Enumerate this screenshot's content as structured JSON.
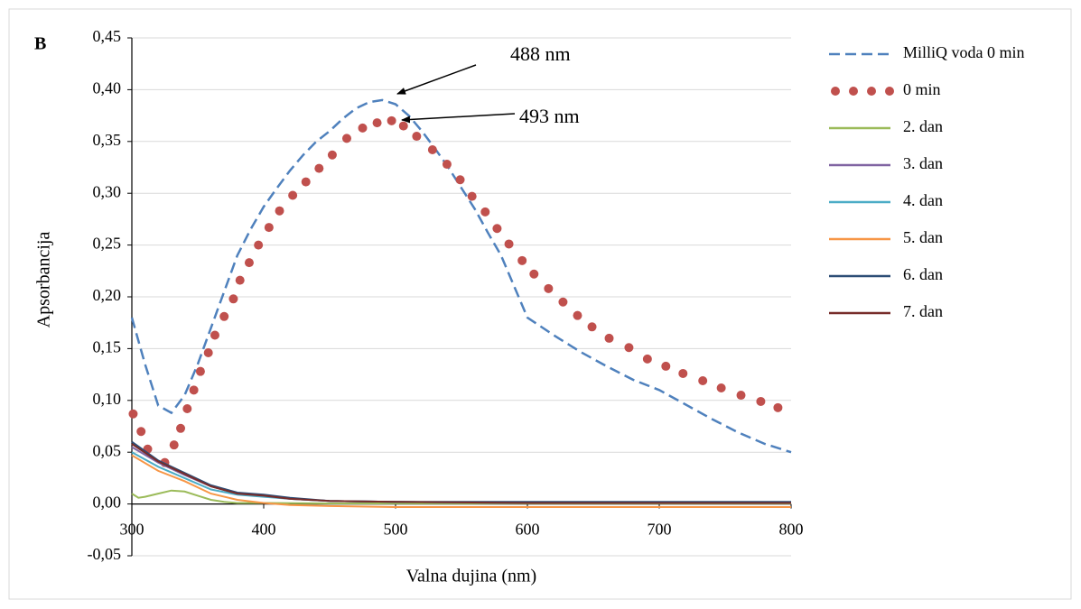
{
  "chart_data": {
    "type": "line",
    "title": "B",
    "xlabel": "Valna dujina (nm)",
    "ylabel": "Apsorbancija",
    "xlim": [
      300,
      800
    ],
    "xticks": [
      300,
      400,
      500,
      600,
      700,
      800
    ],
    "ylim": [
      -0.05,
      0.45
    ],
    "yticks": [
      {
        "value": -0.05,
        "label": "-0,05"
      },
      {
        "value": 0,
        "label": "0,00"
      },
      {
        "value": 0.05,
        "label": "0,05"
      },
      {
        "value": 0.1,
        "label": "0,10"
      },
      {
        "value": 0.15,
        "label": "0,15"
      },
      {
        "value": 0.2,
        "label": "0,20"
      },
      {
        "value": 0.25,
        "label": "0,25"
      },
      {
        "value": 0.3,
        "label": "0,30"
      },
      {
        "value": 0.35,
        "label": "0,35"
      },
      {
        "value": 0.4,
        "label": "0,40"
      },
      {
        "value": 0.45,
        "label": "0,45"
      }
    ],
    "grid": true,
    "legend": "right",
    "annotations": [
      {
        "text": "488 nm"
      },
      {
        "text": "493 nm"
      }
    ],
    "series": [
      {
        "name": "MilliQ voda 0 min",
        "color": "#4f81bd",
        "style": "dashed",
        "x": [
          300,
          310,
          320,
          330,
          340,
          350,
          360,
          370,
          380,
          390,
          400,
          410,
          420,
          430,
          440,
          450,
          460,
          470,
          480,
          490,
          500,
          510,
          520,
          530,
          540,
          550,
          560,
          570,
          580,
          590,
          600,
          620,
          640,
          660,
          680,
          700,
          720,
          740,
          760,
          780,
          800
        ],
        "values": [
          0.18,
          0.135,
          0.095,
          0.088,
          0.105,
          0.135,
          0.17,
          0.205,
          0.24,
          0.265,
          0.287,
          0.305,
          0.322,
          0.337,
          0.35,
          0.36,
          0.372,
          0.382,
          0.388,
          0.39,
          0.386,
          0.375,
          0.36,
          0.343,
          0.325,
          0.305,
          0.285,
          0.262,
          0.24,
          0.21,
          0.18,
          0.163,
          0.147,
          0.133,
          0.12,
          0.11,
          0.096,
          0.082,
          0.069,
          0.058,
          0.05
        ]
      },
      {
        "name": "0 min",
        "color": "#c0504d",
        "style": "dotted",
        "x": [
          301,
          307,
          312,
          325,
          332,
          337,
          342,
          347,
          352,
          358,
          363,
          370,
          377,
          382,
          389,
          396,
          404,
          412,
          422,
          432,
          442,
          452,
          463,
          475,
          486,
          497,
          506,
          516,
          528,
          539,
          549,
          558,
          568,
          577,
          586,
          596,
          605,
          616,
          627,
          638,
          649,
          662,
          677,
          691,
          705,
          718,
          733,
          747,
          762,
          777,
          790
        ],
        "values": [
          0.087,
          0.07,
          0.053,
          0.04,
          0.057,
          0.073,
          0.092,
          0.11,
          0.128,
          0.146,
          0.163,
          0.181,
          0.198,
          0.216,
          0.233,
          0.25,
          0.267,
          0.283,
          0.298,
          0.311,
          0.324,
          0.337,
          0.353,
          0.363,
          0.368,
          0.37,
          0.365,
          0.355,
          0.342,
          0.328,
          0.313,
          0.297,
          0.282,
          0.266,
          0.251,
          0.235,
          0.222,
          0.208,
          0.195,
          0.182,
          0.171,
          0.16,
          0.151,
          0.14,
          0.133,
          0.126,
          0.119,
          0.112,
          0.105,
          0.099,
          0.093
        ]
      },
      {
        "name": "2. dan",
        "color": "#9bbb59",
        "style": "solid",
        "x": [
          300,
          305,
          310,
          320,
          330,
          340,
          350,
          360,
          370,
          380,
          400,
          450,
          500,
          600,
          700,
          800
        ],
        "values": [
          0.01,
          0.006,
          0.007,
          0.01,
          0.013,
          0.012,
          0.008,
          0.004,
          0.002,
          0.001,
          0.001,
          0.0005,
          0.0005,
          0.0005,
          0.0005,
          0.0005
        ]
      },
      {
        "name": "3. dan",
        "color": "#8064a2",
        "style": "solid",
        "x": [
          300,
          320,
          340,
          360,
          380,
          400,
          420,
          450,
          500,
          600,
          700,
          800
        ],
        "values": [
          0.055,
          0.04,
          0.028,
          0.017,
          0.01,
          0.008,
          0.005,
          0.003,
          0.002,
          0.001,
          0.001,
          0.001
        ]
      },
      {
        "name": "4. dan",
        "color": "#4bacc6",
        "style": "solid",
        "x": [
          300,
          320,
          340,
          360,
          380,
          400,
          420,
          450,
          500,
          600,
          700,
          800
        ],
        "values": [
          0.05,
          0.036,
          0.025,
          0.014,
          0.009,
          0.007,
          0.005,
          0.003,
          0.002,
          0.001,
          0.001,
          0.001
        ]
      },
      {
        "name": "5. dan",
        "color": "#f79646",
        "style": "solid",
        "x": [
          300,
          320,
          340,
          360,
          380,
          400,
          420,
          450,
          500,
          600,
          700,
          800
        ],
        "values": [
          0.047,
          0.032,
          0.022,
          0.01,
          0.004,
          0.001,
          -0.001,
          -0.002,
          -0.003,
          -0.003,
          -0.003,
          -0.003
        ]
      },
      {
        "name": "6. dan",
        "color": "#2c4d75",
        "style": "solid",
        "x": [
          300,
          320,
          340,
          360,
          380,
          400,
          420,
          450,
          500,
          600,
          700,
          800
        ],
        "values": [
          0.06,
          0.042,
          0.03,
          0.018,
          0.011,
          0.009,
          0.006,
          0.003,
          0.002,
          0.002,
          0.002,
          0.002
        ]
      },
      {
        "name": "7. dan",
        "color": "#772c2a",
        "style": "solid",
        "x": [
          300,
          320,
          340,
          360,
          380,
          400,
          420,
          450,
          500,
          600,
          700,
          800
        ],
        "values": [
          0.058,
          0.041,
          0.029,
          0.017,
          0.01,
          0.008,
          0.005,
          0.003,
          0.002,
          0.001,
          0.001,
          0.001
        ]
      }
    ]
  }
}
